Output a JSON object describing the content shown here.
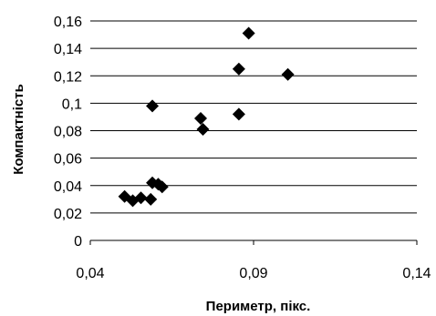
{
  "chart_data": {
    "type": "scatter",
    "title": "",
    "xlabel": "Периметр, пікс.",
    "ylabel": "Компактність",
    "xlim": [
      0.04,
      0.14
    ],
    "ylim": [
      0,
      0.16
    ],
    "x_ticks": [
      0.04,
      0.09,
      0.14
    ],
    "x_tick_labels": [
      "0,04",
      "0,09",
      "0,14"
    ],
    "y_ticks": [
      0,
      0.02,
      0.04,
      0.06,
      0.08,
      0.1,
      0.12,
      0.14,
      0.16
    ],
    "y_tick_labels": [
      "0",
      "0,02",
      "0,04",
      "0,06",
      "0,08",
      "0,1",
      "0,12",
      "0,14",
      "0,16"
    ],
    "grid": "horizontal",
    "legend": "none",
    "marker": "diamond",
    "marker_color": "#000000",
    "series": [
      {
        "points": [
          {
            "x": 0.0505,
            "y": 0.032
          },
          {
            "x": 0.053,
            "y": 0.029
          },
          {
            "x": 0.0555,
            "y": 0.031
          },
          {
            "x": 0.0585,
            "y": 0.03
          },
          {
            "x": 0.059,
            "y": 0.042
          },
          {
            "x": 0.0608,
            "y": 0.041
          },
          {
            "x": 0.062,
            "y": 0.039
          },
          {
            "x": 0.059,
            "y": 0.098
          },
          {
            "x": 0.0738,
            "y": 0.089
          },
          {
            "x": 0.0745,
            "y": 0.081
          },
          {
            "x": 0.0855,
            "y": 0.092
          },
          {
            "x": 0.0855,
            "y": 0.125
          },
          {
            "x": 0.0885,
            "y": 0.151
          },
          {
            "x": 0.1005,
            "y": 0.121
          }
        ]
      }
    ]
  }
}
